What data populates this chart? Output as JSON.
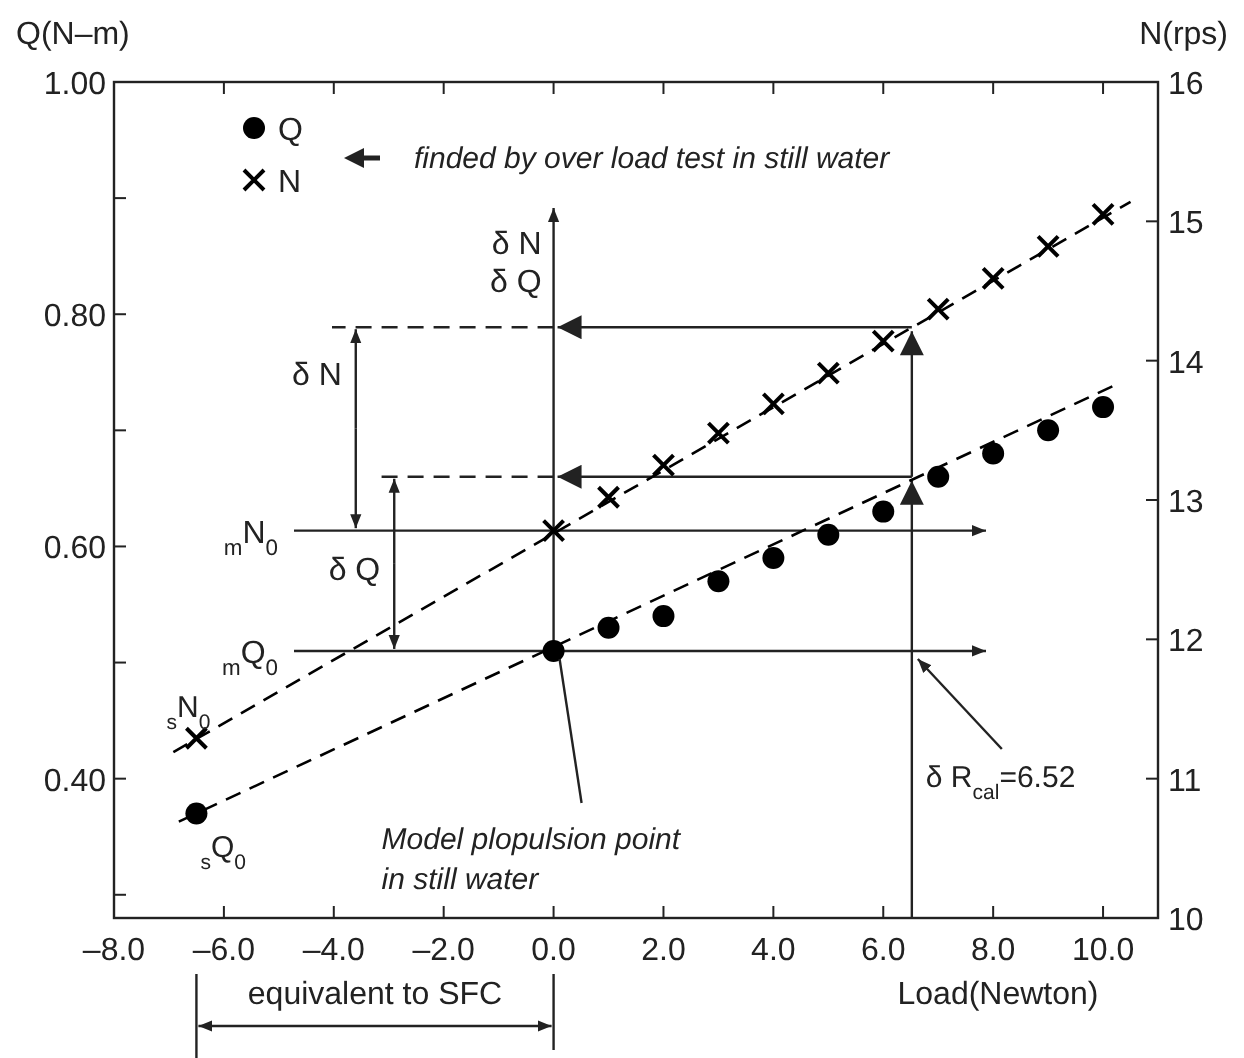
{
  "chart_data": {
    "type": "scatter",
    "xlabel": "Load(Newton)",
    "ylabel": "Q(N–m)",
    "y2label": "N(rps)",
    "xlim": [
      -8,
      11
    ],
    "xticks": [
      {
        "value": -8,
        "label": "–8.0"
      },
      {
        "value": -6,
        "label": "–6.0"
      },
      {
        "value": -4,
        "label": "–4.0"
      },
      {
        "value": -2,
        "label": "–2.0"
      },
      {
        "value": 0,
        "label": "0.0"
      },
      {
        "value": 2,
        "label": "2.0"
      },
      {
        "value": 4,
        "label": "4.0"
      },
      {
        "value": 6,
        "label": "6.0"
      },
      {
        "value": 8,
        "label": "8.0"
      },
      {
        "value": 10,
        "label": "10.0"
      }
    ],
    "ylim": [
      0.28,
      1.0
    ],
    "yticks": [
      {
        "value": 0.3,
        "label": null
      },
      {
        "value": 0.4,
        "label": "0.40"
      },
      {
        "value": 0.5,
        "label": null
      },
      {
        "value": 0.6,
        "label": "0.60"
      },
      {
        "value": 0.7,
        "label": null
      },
      {
        "value": 0.8,
        "label": "0.80"
      },
      {
        "value": 0.9,
        "label": null
      },
      {
        "value": 1.0,
        "label": "1.00"
      }
    ],
    "y2lim": [
      10,
      16
    ],
    "y2ticks": [
      10,
      11,
      12,
      13,
      14,
      15,
      16
    ],
    "legend": "top left",
    "series": [
      {
        "name": "Q",
        "marker": "circle",
        "color": "#000000",
        "x": [
          -6.5,
          0,
          1,
          2,
          3,
          4,
          5,
          6,
          7,
          8,
          9,
          10
        ],
        "values": [
          0.37,
          0.51,
          0.53,
          0.54,
          0.57,
          0.59,
          0.61,
          0.63,
          0.66,
          0.68,
          0.7,
          0.72
        ]
      },
      {
        "name": "N",
        "marker": "cross",
        "axis": "y2",
        "color": "#000000",
        "x": [
          -6.5,
          0,
          1,
          2,
          3,
          4,
          5,
          6,
          7,
          8,
          9,
          10
        ],
        "values": [
          11.29,
          12.78,
          13.02,
          13.25,
          13.48,
          13.69,
          13.91,
          14.14,
          14.37,
          14.59,
          14.82,
          15.05
        ]
      },
      {
        "type": "line",
        "line_style": "dashed",
        "marker": "none",
        "color": "#000000",
        "x": [
          -6.82,
          10.22
        ],
        "values": [
          0.363,
          0.739
        ]
      },
      {
        "type": "line",
        "line_style": "dashed",
        "marker": "none",
        "axis": "y2",
        "color": "#000000",
        "x": [
          -6.92,
          10.5
        ],
        "values": [
          11.19,
          15.14
        ]
      }
    ],
    "ref_lines": [
      {
        "axis": "x",
        "value": 0,
        "label": "δ N\nδ Q"
      },
      {
        "axis": "x",
        "value": 6.52
      },
      {
        "axis": "y2",
        "value": 14.24
      },
      {
        "axis": "y",
        "value": 0.66
      },
      {
        "axis": "y2",
        "value": 12.78,
        "label": "$_{m}$N$_{0}$"
      },
      {
        "axis": "y",
        "value": 0.51,
        "label": "$_{m}$Q$_{0}$"
      }
    ],
    "annotations": [
      "finded by over load test in still water",
      {
        "text": "δ N",
        "x": -3.6,
        "y": 0.614
      },
      {
        "text": "δ Q",
        "x": -2.9,
        "y": 0.51
      },
      "equivalent to SFC",
      {
        "text": "$_{s}$N$_{0}$",
        "x": -6.5,
        "y": 0.436
      },
      {
        "text": "$_{s}$Q$_{0}$",
        "x": -6.5,
        "y": 0.367
      },
      {
        "text": "Model plopulsion point\nin still water",
        "x": 0,
        "y": 0.51
      },
      {
        "text": "δ R$_{cal}$=6.52",
        "x": 6.52,
        "y": 0.51
      }
    ]
  }
}
